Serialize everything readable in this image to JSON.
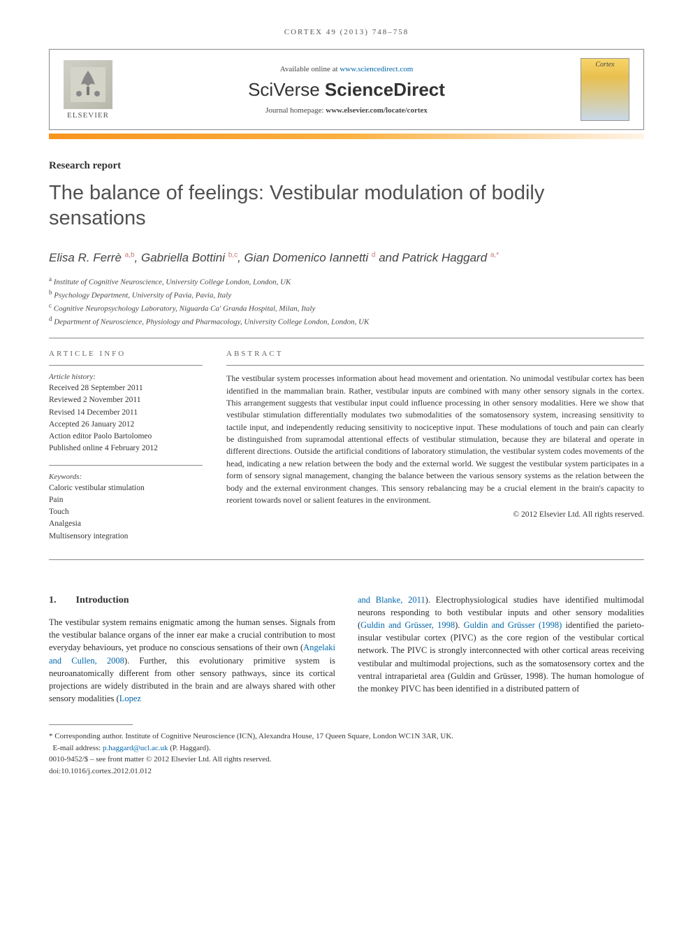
{
  "journal_ref": "CORTEX 49 (2013) 748–758",
  "header": {
    "available_prefix": "Available online at ",
    "available_url": "www.sciencedirect.com",
    "brand": "SciVerse ScienceDirect",
    "homepage_prefix": "Journal homepage: ",
    "homepage_url": "www.elsevier.com/locate/cortex",
    "publisher": "ELSEVIER",
    "cover_title": "Cortex"
  },
  "article": {
    "type": "Research report",
    "title": "The balance of feelings: Vestibular modulation of bodily sensations",
    "authors_html": "Elisa R. Ferrè <span class='sup'>a,b</span>, Gabriella Bottini <span class='sup'>b,c</span>, Gian Domenico Iannetti <span class='sup'>d</span> and Patrick Haggard <span class='sup'>a,*</span>",
    "affiliations": [
      {
        "sup": "a",
        "text": "Institute of Cognitive Neuroscience, University College London, London, UK"
      },
      {
        "sup": "b",
        "text": "Psychology Department, University of Pavia, Pavia, Italy"
      },
      {
        "sup": "c",
        "text": "Cognitive Neuropsychology Laboratory, Niguarda Ca' Granda Hospital, Milan, Italy"
      },
      {
        "sup": "d",
        "text": "Department of Neuroscience, Physiology and Pharmacology, University College London, London, UK"
      }
    ]
  },
  "info": {
    "heading": "ARTICLE INFO",
    "history_label": "Article history:",
    "history": [
      "Received 28 September 2011",
      "Reviewed 2 November 2011",
      "Revised 14 December 2011",
      "Accepted 26 January 2012",
      "Action editor Paolo Bartolomeo",
      "Published online 4 February 2012"
    ],
    "keywords_label": "Keywords:",
    "keywords": [
      "Caloric vestibular stimulation",
      "Pain",
      "Touch",
      "Analgesia",
      "Multisensory integration"
    ]
  },
  "abstract": {
    "heading": "ABSTRACT",
    "text": "The vestibular system processes information about head movement and orientation. No unimodal vestibular cortex has been identified in the mammalian brain. Rather, vestibular inputs are combined with many other sensory signals in the cortex. This arrangement suggests that vestibular input could influence processing in other sensory modalities. Here we show that vestibular stimulation differentially modulates two submodalities of the somatosensory system, increasing sensitivity to tactile input, and independently reducing sensitivity to nociceptive input. These modulations of touch and pain can clearly be distinguished from supramodal attentional effects of vestibular stimulation, because they are bilateral and operate in different directions. Outside the artificial conditions of laboratory stimulation, the vestibular system codes movements of the head, indicating a new relation between the body and the external world. We suggest the vestibular system participates in a form of sensory signal management, changing the balance between the various sensory systems as the relation between the body and the external environment changes. This sensory rebalancing may be a crucial element in the brain's capacity to reorient towards novel or salient features in the environment.",
    "copyright": "© 2012 Elsevier Ltd. All rights reserved."
  },
  "body": {
    "section_num": "1.",
    "section_title": "Introduction",
    "col1": "The vestibular system remains enigmatic among the human senses. Signals from the vestibular balance organs of the inner ear make a crucial contribution to most everyday behaviours, yet produce no conscious sensations of their own (Angelaki and Cullen, 2008). Further, this evolutionary primitive system is neuroanatomically different from other sensory pathways, since its cortical projections are widely distributed in the brain and are always shared with other sensory modalities (Lopez",
    "col1_refs": [
      "Angelaki and Cullen, 2008",
      "Lopez"
    ],
    "col2": "and Blanke, 2011). Electrophysiological studies have identified multimodal neurons responding to both vestibular inputs and other sensory modalities (Guldin and Grüsser, 1998). Guldin and Grüsser (1998) identified the parieto-insular vestibular cortex (PIVC) as the core region of the vestibular cortical network. The PIVC is strongly interconnected with other cortical areas receiving vestibular and multimodal projections, such as the somatosensory cortex and the ventral intraparietal area (Guldin and Grüsser, 1998). The human homologue of the monkey PIVC has been identified in a distributed pattern of",
    "col2_refs": [
      "and Blanke, 2011",
      "Guldin and Grüsser, 1998",
      "Guldin and Grüsser (1998)",
      "Guldin and Grüsser, 1998"
    ]
  },
  "footnotes": {
    "corresponding": "* Corresponding author. Institute of Cognitive Neuroscience (ICN), Alexandra House, 17 Queen Square, London WC1N 3AR, UK.",
    "email_label": "E-mail address: ",
    "email": "p.haggard@ucl.ac.uk",
    "email_name": " (P. Haggard).",
    "issn": "0010-9452/$ – see front matter © 2012 Elsevier Ltd. All rights reserved.",
    "doi": "doi:10.1016/j.cortex.2012.01.012"
  },
  "colors": {
    "orange_gradient_start": "#f7941e",
    "orange_gradient_end": "#fef4e8",
    "link": "#0066aa",
    "text": "#2a2a2a",
    "heading_gray": "#505050"
  }
}
